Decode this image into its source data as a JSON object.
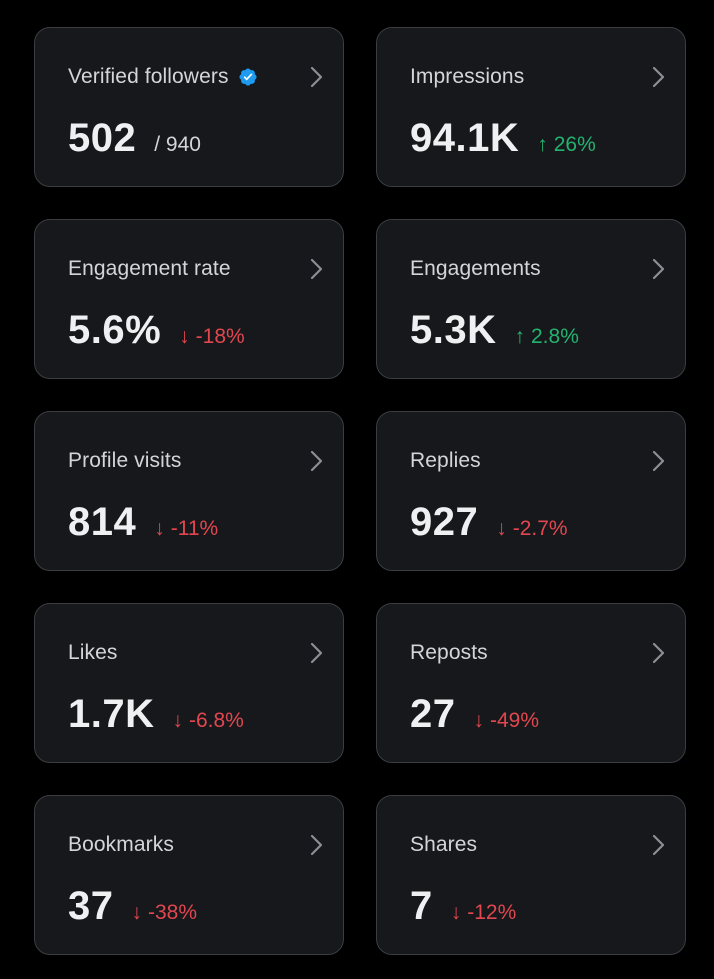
{
  "colors": {
    "background": "#000000",
    "card": "#16181c",
    "card_border": "#3a3d42",
    "positive": "#24b36f",
    "negative": "#e2474f",
    "verified": "#1d9bf0"
  },
  "cards": [
    {
      "title": "Verified followers",
      "value": "502",
      "sub": "/ 940",
      "verified_icon": "verified-badge-icon"
    },
    {
      "title": "Impressions",
      "value": "94.1K",
      "change": "26%",
      "direction": "up",
      "arrow": "↑"
    },
    {
      "title": "Engagement rate",
      "value": "5.6%",
      "change": "-18%",
      "direction": "down",
      "arrow": "↓"
    },
    {
      "title": "Engagements",
      "value": "5.3K",
      "change": "2.8%",
      "direction": "up",
      "arrow": "↑"
    },
    {
      "title": "Profile visits",
      "value": "814",
      "change": "-11%",
      "direction": "down",
      "arrow": "↓"
    },
    {
      "title": "Replies",
      "value": "927",
      "change": "-2.7%",
      "direction": "down",
      "arrow": "↓"
    },
    {
      "title": "Likes",
      "value": "1.7K",
      "change": "-6.8%",
      "direction": "down",
      "arrow": "↓"
    },
    {
      "title": "Reposts",
      "value": "27",
      "change": "-49%",
      "direction": "down",
      "arrow": "↓"
    },
    {
      "title": "Bookmarks",
      "value": "37",
      "change": "-38%",
      "direction": "down",
      "arrow": "↓"
    },
    {
      "title": "Shares",
      "value": "7",
      "change": "-12%",
      "direction": "down",
      "arrow": "↓"
    }
  ]
}
